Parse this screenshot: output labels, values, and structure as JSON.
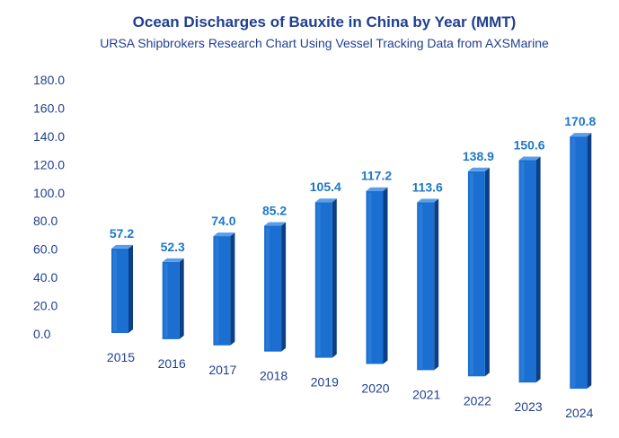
{
  "chart_data": {
    "type": "bar",
    "title": "Ocean Discharges of Bauxite in China by Year (MMT)",
    "subtitle": "URSA Shipbrokers Research Chart Using Vessel Tracking Data from AXSMarine",
    "categories": [
      "2015",
      "2016",
      "2017",
      "2018",
      "2019",
      "2020",
      "2021",
      "2022",
      "2023",
      "2024"
    ],
    "values": [
      57.2,
      52.3,
      74.0,
      85.2,
      105.4,
      117.2,
      113.6,
      138.9,
      150.6,
      170.8
    ],
    "data_labels": [
      "57.2",
      "52.3",
      "74.0",
      "85.2",
      "105.4",
      "117.2",
      "113.6",
      "138.9",
      "150.6",
      "170.8"
    ],
    "ylim": [
      0,
      180
    ],
    "yticks": [
      "0.0",
      "20.0",
      "40.0",
      "60.0",
      "80.0",
      "100.0",
      "120.0",
      "140.0",
      "160.0",
      "180.0"
    ],
    "grid": false,
    "legend": "none",
    "colors": {
      "title": "#1f3f8f",
      "text": "#1f3f8f",
      "label": "#1f77c8",
      "bar_front": "#1a6fd0",
      "bar_side": "#0d3f86",
      "bar_top": "#5a9ee8"
    }
  }
}
